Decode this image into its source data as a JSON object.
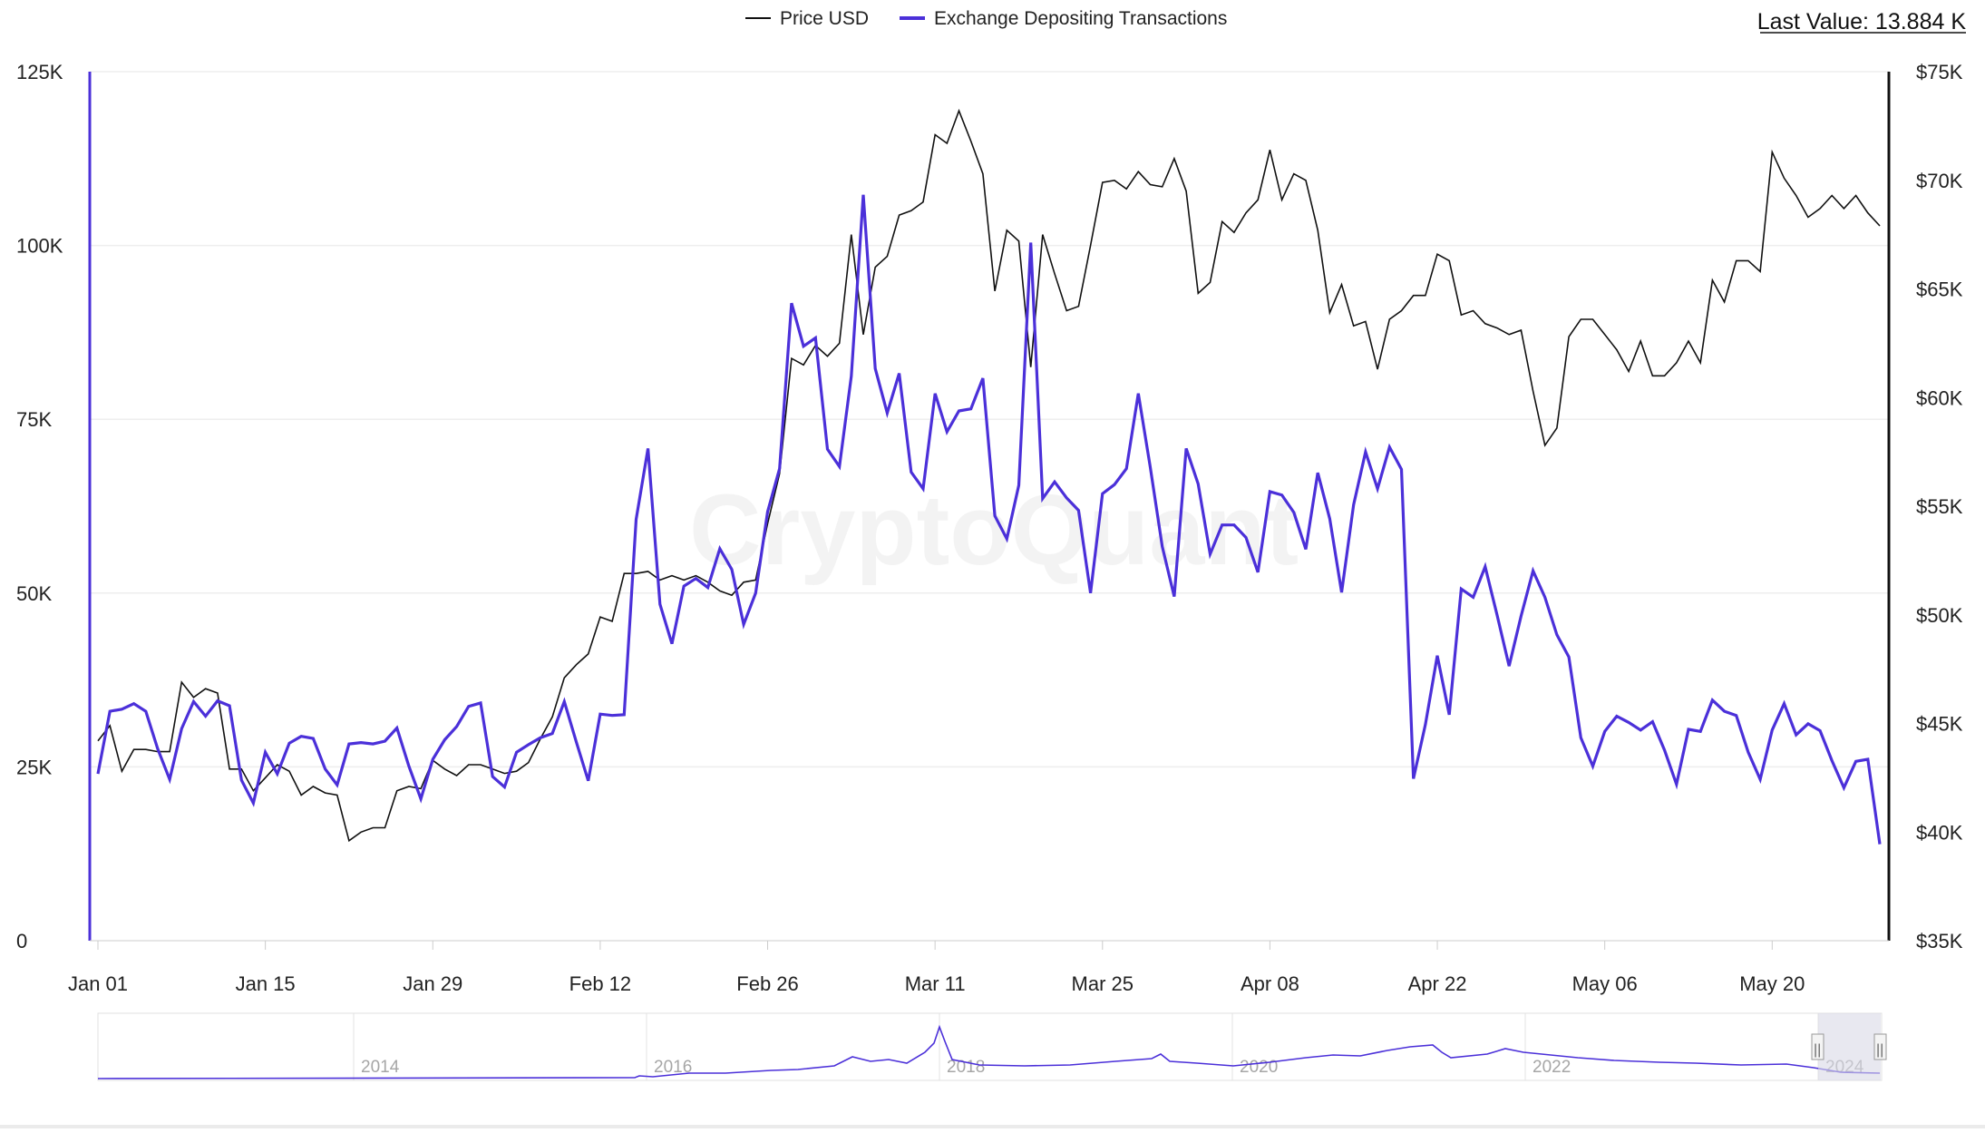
{
  "legend": {
    "price_label": "Price USD",
    "flow_label": "Exchange Depositing Transactions"
  },
  "last_value": {
    "label": "Last Value: 13.884 K"
  },
  "watermark": "CryptoQuant",
  "colors": {
    "price": "#111111",
    "flow": "#4b30d9",
    "grid": "#eeeeee",
    "navigator_mask": "#e6e6ee"
  },
  "navigator": {
    "years": [
      "2014",
      "2016",
      "2018",
      "2020",
      "2022",
      "2024"
    ],
    "handle_glyph": "||"
  },
  "chart_data": {
    "type": "line",
    "x_ticks": [
      "Jan 01",
      "Jan 15",
      "Jan 29",
      "Feb 12",
      "Feb 26",
      "Mar 11",
      "Mar 25",
      "Apr 08",
      "Apr 22",
      "May 06",
      "May 20"
    ],
    "y_left_ticks": [
      "0",
      "25K",
      "50K",
      "75K",
      "100K",
      "125K"
    ],
    "y_left_range": [
      0,
      125000
    ],
    "y_right_ticks": [
      "$35K",
      "$40K",
      "$45K",
      "$50K",
      "$55K",
      "$60K",
      "$65K",
      "$70K",
      "$75K"
    ],
    "y_right_range": [
      35000,
      75000
    ],
    "grid": true,
    "legend_position": "top-center",
    "series": [
      {
        "name": "Price USD",
        "axis": "right",
        "values": [
          44200,
          44900,
          42800,
          43800,
          43800,
          43700,
          43700,
          46900,
          46200,
          46600,
          46400,
          42900,
          42900,
          41900,
          42500,
          43100,
          42800,
          41700,
          42100,
          41800,
          41700,
          39600,
          40000,
          40200,
          40200,
          41900,
          42100,
          42000,
          43300,
          42900,
          42600,
          43100,
          43100,
          42900,
          42700,
          42800,
          43200,
          44300,
          45300,
          47100,
          47700,
          48200,
          49900,
          49700,
          51900,
          51900,
          52000,
          51600,
          51800,
          51600,
          51800,
          51500,
          51100,
          50900,
          51500,
          51600,
          54200,
          56500,
          61800,
          61500,
          62400,
          61900,
          62500,
          67500,
          62900,
          66000,
          66500,
          68400,
          68600,
          69000,
          72100,
          71700,
          73200,
          71800,
          70300,
          64900,
          67700,
          67200,
          61400,
          67500,
          65700,
          64000,
          64200,
          67000,
          69900,
          70000,
          69600,
          70400,
          69800,
          69700,
          71000,
          69500,
          64800,
          65300,
          68100,
          67600,
          68500,
          69100,
          71400,
          69100,
          70300,
          70000,
          67700,
          63900,
          65200,
          63300,
          63500,
          61300,
          63600,
          64000,
          64700,
          64700,
          66600,
          66300,
          63800,
          64000,
          63400,
          63200,
          62900,
          63100,
          60300,
          57800,
          58600,
          62800,
          63600,
          63600,
          62900,
          62200,
          61200,
          62600,
          61000,
          61000,
          61600,
          62600,
          61600,
          65400,
          64400,
          66300,
          66300,
          65800,
          71300,
          70100,
          69300,
          68300,
          68700,
          69300,
          68700,
          69300,
          68500,
          67900
        ]
      },
      {
        "name": "Exchange Depositing Transactions",
        "axis": "left",
        "values": [
          24000,
          33000,
          33300,
          34100,
          33000,
          27600,
          23200,
          30500,
          34400,
          32300,
          34500,
          33800,
          23100,
          19800,
          27100,
          24000,
          28400,
          29400,
          29100,
          24700,
          22400,
          28300,
          28500,
          28300,
          28700,
          30600,
          25100,
          20400,
          26100,
          28900,
          30800,
          33700,
          34200,
          23600,
          22100,
          27100,
          28200,
          29200,
          29800,
          34400,
          28600,
          23000,
          32600,
          32400,
          32500,
          60600,
          70800,
          48400,
          42700,
          51000,
          52100,
          50800,
          56400,
          53400,
          45500,
          50000,
          61700,
          67900,
          91700,
          85500,
          86700,
          70700,
          68200,
          81200,
          107300,
          82300,
          75900,
          81600,
          67400,
          65000,
          78700,
          73200,
          76200,
          76500,
          80900,
          61100,
          57800,
          65500,
          100400,
          63600,
          66000,
          63700,
          61900,
          50000,
          64300,
          65600,
          67900,
          78700,
          68100,
          56700,
          49500,
          70800,
          65700,
          55600,
          59800,
          59800,
          58000,
          53000,
          64600,
          64100,
          61600,
          56300,
          67300,
          60700,
          50100,
          62700,
          70300,
          65000,
          71000,
          67800,
          23300,
          31100,
          41000,
          32500,
          50600,
          49400,
          53800,
          46800,
          39500,
          46700,
          53200,
          49400,
          44000,
          40800,
          29200,
          25100,
          30100,
          32300,
          31400,
          30300,
          31500,
          27400,
          22500,
          30400,
          30100,
          34600,
          33000,
          32400,
          27100,
          23200,
          30300,
          34100,
          29600,
          31200,
          30200,
          25900,
          22000,
          25800,
          26100,
          13884
        ]
      }
    ]
  }
}
